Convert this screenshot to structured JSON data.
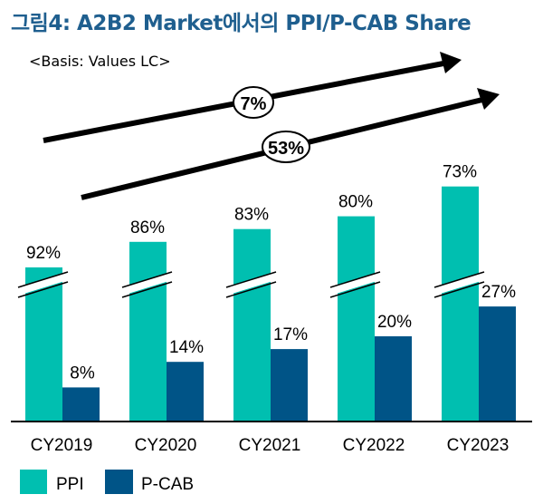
{
  "title": "그림4: A2B2 Market에서의 PPI/P-CAB Share",
  "basis": "<Basis: Values LC>",
  "chart_data": {
    "type": "bar",
    "title": "그림4: A2B2 Market에서의 PPI/P-CAB Share",
    "categories": [
      "CY2019",
      "CY2020",
      "CY2021",
      "CY2022",
      "CY2023"
    ],
    "series": [
      {
        "name": "PPI",
        "color": "#00bfb0",
        "values": [
          92,
          86,
          83,
          80,
          73
        ],
        "labels": [
          "92%",
          "86%",
          "83%",
          "80%",
          "73%"
        ]
      },
      {
        "name": "P-CAB",
        "color": "#005487",
        "values": [
          8,
          14,
          17,
          20,
          27
        ],
        "labels": [
          "8%",
          "14%",
          "17%",
          "20%",
          "27%"
        ]
      }
    ],
    "axis_break": true,
    "annotations": [
      {
        "label": "7%"
      },
      {
        "label": "53%"
      }
    ],
    "legend": "bottom-left",
    "unit": "%"
  }
}
